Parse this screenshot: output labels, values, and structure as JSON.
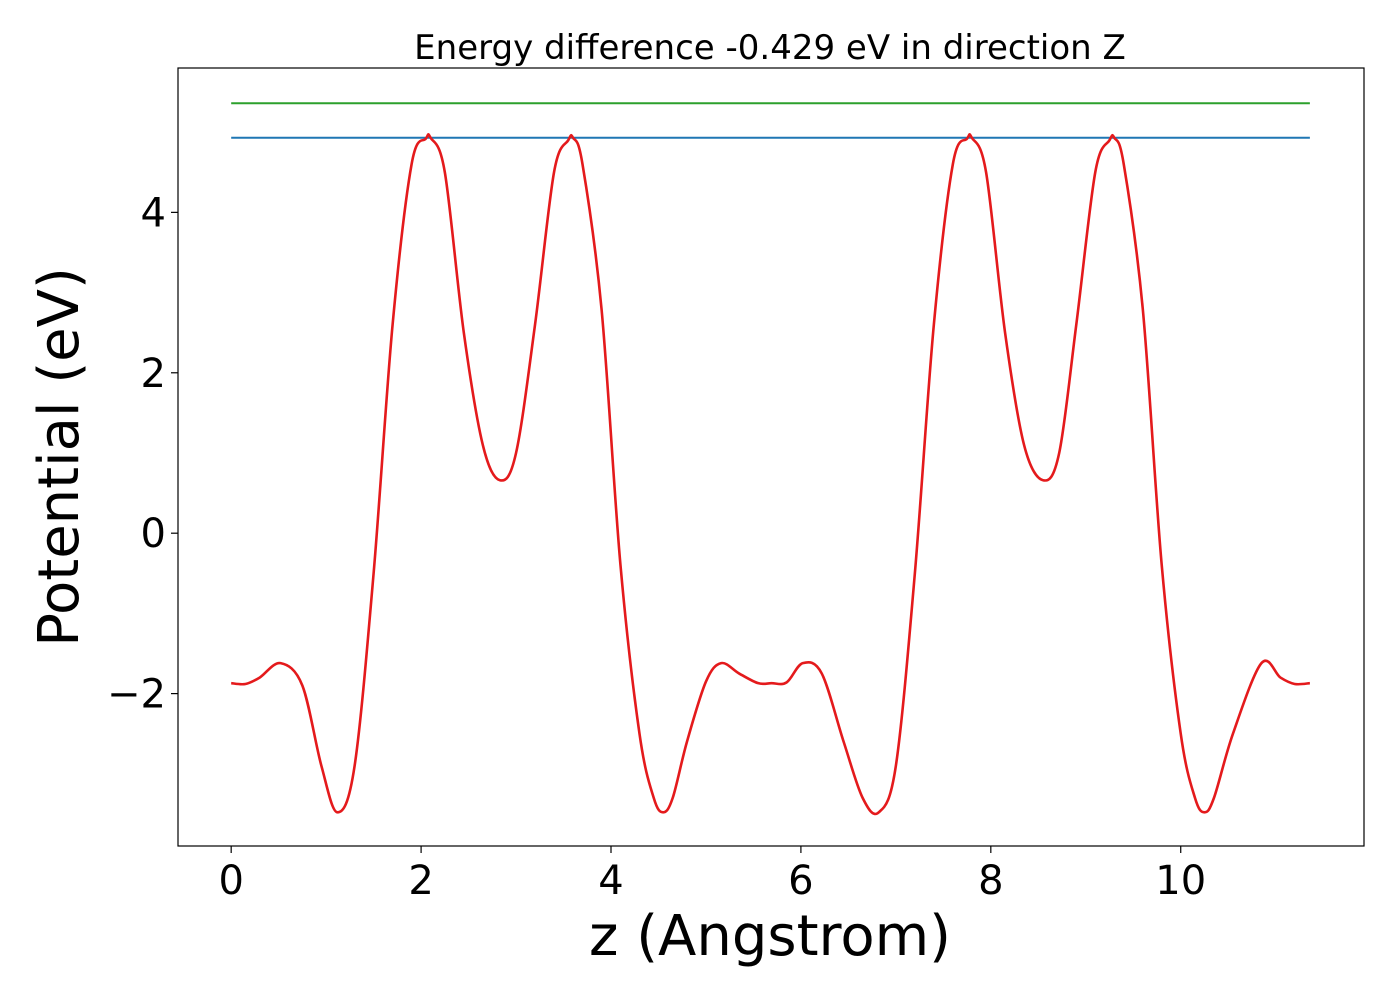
{
  "chart_data": {
    "type": "line",
    "title": "Energy difference -0.429 eV in direction Z",
    "xlabel": "z (Angstrom)",
    "ylabel": "Potential (eV)",
    "xlim": [
      -0.56,
      11.93
    ],
    "ylim": [
      -3.9,
      5.8
    ],
    "xticks": [
      0,
      2,
      4,
      6,
      8,
      10
    ],
    "xtick_labels": [
      "0",
      "2",
      "4",
      "6",
      "8",
      "10"
    ],
    "yticks": [
      -2,
      0,
      2,
      4
    ],
    "ytick_labels": [
      "−2",
      "0",
      "2",
      "4"
    ],
    "grid": false,
    "series": [
      {
        "color": "#2ca02c",
        "x": [
          0,
          11.36
        ],
        "y": [
          5.36,
          5.36
        ]
      },
      {
        "color": "#1f77b4",
        "x": [
          0,
          11.36
        ],
        "y": [
          4.93,
          4.93
        ]
      },
      {
        "color": "#e41a1c",
        "x": [
          0,
          0.15,
          0.3,
          0.52,
          0.75,
          0.95,
          1.12,
          1.3,
          1.5,
          1.7,
          1.9,
          2.05,
          2.1,
          2.25,
          2.45,
          2.65,
          2.83,
          3.0,
          3.2,
          3.4,
          3.55,
          3.6,
          3.7,
          3.9,
          4.1,
          4.3,
          4.45,
          4.55,
          4.65,
          4.8,
          5.0,
          5.16,
          5.35,
          5.55,
          5.69,
          5.85,
          6.02,
          6.22,
          6.45,
          6.65,
          6.82,
          7.0,
          7.2,
          7.4,
          7.6,
          7.75,
          7.8,
          7.95,
          8.15,
          8.35,
          8.55,
          8.72,
          8.9,
          9.1,
          9.25,
          9.3,
          9.4,
          9.6,
          9.8,
          10.0,
          10.15,
          10.25,
          10.35,
          10.55,
          10.85,
          11.05,
          11.2,
          11.36
        ],
        "y": [
          -1.87,
          -1.88,
          -1.8,
          -1.62,
          -1.9,
          -2.9,
          -3.48,
          -2.9,
          -0.5,
          2.6,
          4.6,
          4.92,
          4.93,
          4.5,
          2.5,
          1.1,
          0.66,
          1.0,
          2.6,
          4.5,
          4.9,
          4.93,
          4.6,
          2.8,
          -0.4,
          -2.5,
          -3.3,
          -3.48,
          -3.3,
          -2.6,
          -1.85,
          -1.62,
          -1.75,
          -1.87,
          -1.87,
          -1.86,
          -1.62,
          -1.75,
          -2.6,
          -3.3,
          -3.48,
          -2.9,
          -0.5,
          2.6,
          4.6,
          4.92,
          4.93,
          4.5,
          2.5,
          1.1,
          0.66,
          1.0,
          2.6,
          4.5,
          4.9,
          4.93,
          4.6,
          2.8,
          -0.4,
          -2.5,
          -3.3,
          -3.48,
          -3.3,
          -2.5,
          -1.62,
          -1.8,
          -1.88,
          -1.87
        ]
      }
    ]
  }
}
